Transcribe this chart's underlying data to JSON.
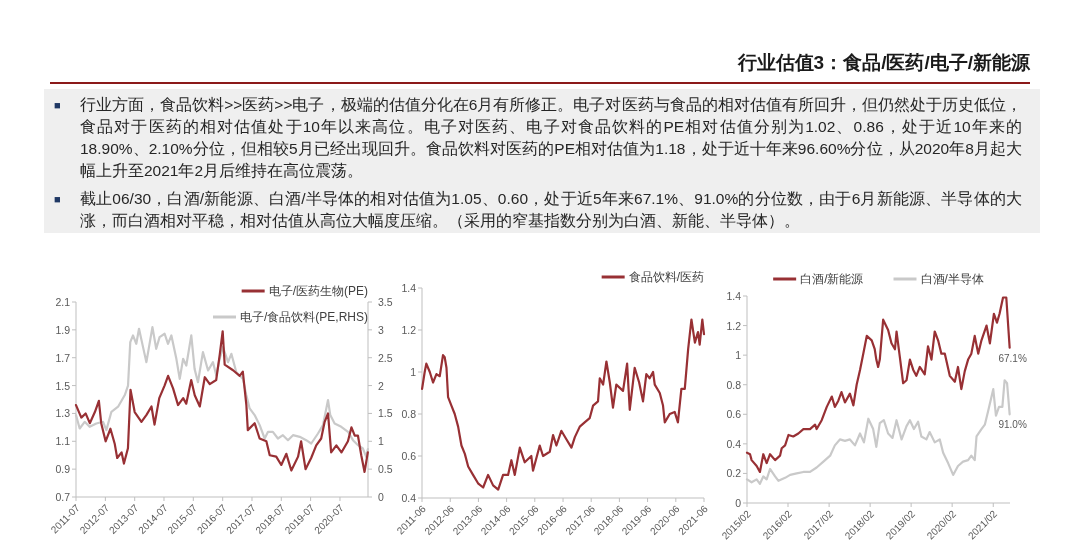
{
  "chart_data": [
    {
      "type": "other",
      "title": "行业估值3：食品/医药/电子/新能源",
      "annotations": [
        "■行业方面，食品饮料>>医药>>电子，极端的估值分化在6月有所修正。电子对医药与食品的相对估值有所回升，但仍然处于历史低位，食品对于医药的相对估值处于10年以来高位。电子对医药、电子对食品饮料的PE相对估值分别为1.02、0.86，处于近10年来的18.90%、2.10%分位，但相较5月已经出现回升。食品饮料对医药的PE相对估值为1.18，处于近十年来96.60%分位，从2020年8月起大幅上升至2021年2月后维持在高位震荡。",
        "■截止06/30，白酒/新能源、白酒/半导体的相对估值为1.05、0.60，处于近5年来67.1%、91.0%的分位数，由于6月新能源、半导体的大涨，而白酒相对平稳，相对估值从高位大幅度压缩。（采用的窄基指数分别为白酒、新能、半导体）。"
      ]
    },
    {
      "type": "line",
      "legend": "top right",
      "xlim": [
        "2011-07",
        "2021-06-15"
      ],
      "xticks": [
        "2011-07",
        "2012-07",
        "2013-07",
        "2014-07",
        "2015-07",
        "2016-07",
        "2017-07",
        "2018-07",
        "2019-07",
        "2020-07"
      ],
      "ylim": [
        0.7,
        2.1
      ],
      "yticks": [
        0.7,
        0.9,
        1.1,
        1.3,
        1.5,
        1.7,
        1.9,
        2.1
      ],
      "y2lim": [
        0,
        3.5
      ],
      "y2ticks": [
        0,
        0.5,
        1,
        1.5,
        2,
        2.5,
        3,
        3.5
      ],
      "series": [
        {
          "name": "电子/医药生物(PE)",
          "color": "#983034",
          "x": [
            "2011-07-01",
            "2011-09-05",
            "2011-10-29",
            "2011-12-20",
            "2012-02-21",
            "2012-04-11",
            "2012-05-10",
            "2012-07-04",
            "2012-09-02",
            "2012-10-26",
            "2012-11-25",
            "2013-01-19",
            "2013-02-17",
            "2013-04-08",
            "2013-05-10",
            "2013-07-01",
            "2013-09-23",
            "2013-11-25",
            "2014-01-26",
            "2014-03-05",
            "2014-05-03",
            "2014-07-08",
            "2014-08-21",
            "2014-10-22",
            "2014-12-23",
            "2015-02-25",
            "2015-04-04",
            "2015-06-05",
            "2015-07-19",
            "2015-09-20",
            "2015-11-21",
            "2016-01-22",
            "2016-04-11",
            "2016-05-25",
            "2016-07-01",
            "2016-07-26",
            "2016-11-07",
            "2017-01-29",
            "2017-03-09",
            "2017-04-22",
            "2017-05-10",
            "2017-08-03",
            "2017-10-04",
            "2017-12-27",
            "2018-02-07",
            "2018-04-29",
            "2018-07-01",
            "2018-09-02",
            "2018-11-03",
            "2019-01-26",
            "2019-03-05",
            "2019-04-29",
            "2019-07-08",
            "2019-09-09",
            "2019-11-10",
            "2019-12-23",
            "2020-02-03",
            "2020-03-13",
            "2020-05-17",
            "2020-07-19",
            "2020-10-08",
            "2020-11-21",
            "2021-01-01",
            "2021-02-10",
            "2021-03-23",
            "2021-05-03",
            "2021-06-13"
          ],
          "values": [
            1.36,
            1.27,
            1.3,
            1.23,
            1.31,
            1.39,
            1.23,
            1.1,
            1.19,
            1.08,
            0.98,
            1.02,
            0.94,
            1.05,
            1.47,
            1.31,
            1.24,
            1.29,
            1.35,
            1.22,
            1.41,
            1.5,
            1.57,
            1.48,
            1.36,
            1.41,
            1.37,
            1.54,
            1.43,
            1.35,
            1.56,
            1.51,
            1.54,
            1.72,
            1.89,
            1.65,
            1.61,
            1.57,
            1.6,
            1.36,
            1.18,
            1.23,
            1.12,
            1.1,
            1.0,
            0.99,
            0.93,
            1.01,
            0.89,
            0.99,
            1.1,
            0.9,
            0.98,
            1.07,
            1.12,
            1.24,
            1.3,
            1.02,
            1.07,
            1.02,
            1.1,
            1.2,
            1.14,
            1.14,
            1.0,
            0.88,
            1.02
          ]
        },
        {
          "name": "电子/食品饮料(PE,RHS)",
          "color": "#c9c9c9",
          "axis": "y2",
          "x": [
            "2011-07-01",
            "2011-08-16",
            "2011-10-17",
            "2011-12-18",
            "2012-03-10",
            "2012-06-02",
            "2012-07-13",
            "2012-09-14",
            "2012-12-06",
            "2013-02-28",
            "2013-04-09",
            "2013-05-07",
            "2013-06-10",
            "2013-07-21",
            "2013-08-24",
            "2013-10-13",
            "2013-11-24",
            "2014-02-07",
            "2014-03-26",
            "2014-05-07",
            "2014-07-09",
            "2014-08-20",
            "2014-10-01",
            "2014-12-02",
            "2015-01-13",
            "2015-02-24",
            "2015-04-05",
            "2015-06-06",
            "2015-07-17",
            "2015-08-28",
            "2015-10-29",
            "2016-01-01",
            "2016-03-02",
            "2016-04-13",
            "2016-05-24",
            "2016-07-05",
            "2016-09-06",
            "2016-10-17",
            "2016-12-18",
            "2017-03-10",
            "2017-04-21",
            "2017-06-02",
            "2017-08-03",
            "2017-10-05",
            "2017-12-06",
            "2018-01-17",
            "2018-03-18",
            "2018-05-20",
            "2018-07-21",
            "2018-09-22",
            "2018-11-24",
            "2019-02-16",
            "2019-05-07",
            "2019-07-09",
            "2019-10-01",
            "2019-12-02",
            "2020-02-03",
            "2020-03-02",
            "2020-04-25",
            "2020-07-17",
            "2020-10-09",
            "2020-12-10",
            "2021-02-11",
            "2021-04-13",
            "2021-05-24",
            "2021-06-14"
          ],
          "values": [
            1.47,
            1.23,
            1.35,
            1.26,
            1.32,
            1.35,
            1.2,
            1.53,
            1.62,
            1.83,
            2.0,
            2.78,
            2.9,
            2.75,
            3.02,
            2.69,
            2.42,
            3.05,
            2.66,
            2.87,
            2.93,
            2.75,
            2.9,
            2.48,
            2.12,
            2.48,
            2.36,
            2.9,
            2.3,
            2.06,
            2.6,
            2.27,
            2.42,
            2.18,
            2.48,
            2.69,
            2.42,
            2.57,
            2.24,
            2.12,
            1.83,
            1.59,
            1.47,
            1.29,
            1.05,
            1.17,
            1.17,
            1.05,
            1.11,
            1.02,
            1.11,
            1.08,
            1.02,
            0.96,
            1.14,
            1.29,
            1.74,
            1.47,
            1.32,
            1.26,
            1.17,
            1.02,
            0.93,
            0.87,
            0.72,
            0.86
          ]
        }
      ]
    },
    {
      "type": "line",
      "legend": "top right",
      "xlim": [
        "2011-06",
        "2021-06"
      ],
      "xticks": [
        "2011-06",
        "2012-06",
        "2013-06",
        "2014-06",
        "2015-06",
        "2016-06",
        "2017-06",
        "2018-06",
        "2019-06",
        "2020-06",
        "2021-06"
      ],
      "ylim": [
        0.4,
        1.4
      ],
      "yticks": [
        0.4,
        0.6,
        0.8,
        1,
        1.2,
        1.4
      ],
      "series": [
        {
          "name": "食品饮料/医药",
          "color": "#983034",
          "x": [
            "2011-06-02",
            "2011-07-06",
            "2011-07-27",
            "2011-09-10",
            "2011-10-22",
            "2011-12-05",
            "2012-01-17",
            "2012-02-28",
            "2012-03-21",
            "2012-04-13",
            "2012-05-04",
            "2012-06-16",
            "2012-07-29",
            "2012-09-11",
            "2012-10-24",
            "2012-12-07",
            "2013-01-19",
            "2013-03-23",
            "2013-05-27",
            "2013-08-01",
            "2013-10-04",
            "2013-12-08",
            "2014-02-12",
            "2014-04-16",
            "2014-06-20",
            "2014-08-02",
            "2014-09-15",
            "2014-11-19",
            "2015-01-22",
            "2015-04-17",
            "2015-05-09",
            "2015-08-04",
            "2015-09-16",
            "2015-12-12",
            "2016-01-24",
            "2016-03-07",
            "2016-05-10",
            "2016-07-14",
            "2016-09-18",
            "2016-11-01",
            "2017-01-04",
            "2017-03-08",
            "2017-05-12",
            "2017-06-25",
            "2017-08-28",
            "2017-09-20",
            "2017-11-02",
            "2017-12-15",
            "2018-01-28",
            "2018-03-10",
            "2018-04-22",
            "2018-07-18",
            "2018-09-09",
            "2018-10-13",
            "2018-12-16",
            "2019-02-12",
            "2019-04-03",
            "2019-05-16",
            "2019-06-28",
            "2019-08-11",
            "2019-09-02",
            "2019-11-06",
            "2019-12-18",
            "2020-01-10",
            "2020-03-14",
            "2020-05-17",
            "2020-06-28",
            "2020-08-12",
            "2020-09-25",
            "2020-11-08",
            "2020-12-20",
            "2021-02-03",
            "2021-03-15",
            "2021-04-06",
            "2021-05-10",
            "2021-06-01"
          ],
          "values": [
            0.92,
            1.0,
            1.04,
            1.0,
            0.95,
            0.99,
            0.98,
            1.08,
            1.07,
            1.02,
            0.88,
            0.84,
            0.8,
            0.74,
            0.65,
            0.61,
            0.55,
            0.51,
            0.47,
            0.45,
            0.51,
            0.46,
            0.44,
            0.51,
            0.51,
            0.58,
            0.51,
            0.64,
            0.57,
            0.6,
            0.53,
            0.65,
            0.6,
            0.62,
            0.7,
            0.65,
            0.72,
            0.68,
            0.64,
            0.69,
            0.74,
            0.76,
            0.78,
            0.84,
            0.86,
            0.97,
            0.94,
            1.05,
            0.95,
            0.83,
            0.94,
            0.91,
            1.04,
            0.82,
            1.02,
            0.95,
            0.86,
            0.99,
            0.97,
            1.0,
            0.94,
            0.9,
            0.84,
            0.76,
            0.8,
            0.81,
            0.76,
            0.92,
            0.92,
            1.11,
            1.25,
            1.14,
            1.19,
            1.13,
            1.25,
            1.18
          ]
        }
      ]
    },
    {
      "type": "line",
      "legend": "top",
      "xlim": [
        "2015-02",
        "2021-06-30"
      ],
      "xticks": [
        {
          "value": "2015-02",
          "label": "2015/02"
        },
        {
          "value": "2016-02",
          "label": "2016/02"
        },
        {
          "value": "2017-02",
          "label": "2017/02"
        },
        {
          "value": "2018-02",
          "label": "2018/02"
        },
        {
          "value": "2019-02",
          "label": "2019/02"
        },
        {
          "value": "2020-02",
          "label": "2020/02"
        },
        {
          "value": "2021-02",
          "label": "2021/02"
        }
      ],
      "ylim": [
        0,
        1.4
      ],
      "yticks": [
        0,
        0.2,
        0.4,
        0.6,
        0.8,
        1,
        1.2,
        1.4
      ],
      "annotations": [
        {
          "text": "67.1%",
          "x": "2021-06-27",
          "y": 1.05
        },
        {
          "text": "91.0%",
          "x": "2021-06-27",
          "y": 0.6
        }
      ],
      "series": [
        {
          "name": "白酒/新能源",
          "color": "#983034",
          "x": [
            "2015-02-01",
            "2015-02-28",
            "2015-03-14",
            "2015-04-28",
            "2015-05-27",
            "2015-06-26",
            "2015-07-26",
            "2015-08-25",
            "2015-10-09",
            "2015-11-22",
            "2015-12-07",
            "2016-01-06",
            "2016-02-05",
            "2016-03-19",
            "2016-05-03",
            "2016-06-17",
            "2016-08-15",
            "2016-09-29",
            "2016-10-13",
            "2016-11-27",
            "2017-01-11",
            "2017-02-25",
            "2017-03-24",
            "2017-04-23",
            "2017-05-22",
            "2017-06-22",
            "2017-08-05",
            "2017-09-05",
            "2017-10-04",
            "2017-11-03",
            "2017-12-02",
            "2018-01-02",
            "2018-02-15",
            "2018-03-14",
            "2018-03-28",
            "2018-04-13",
            "2018-04-28",
            "2018-05-28",
            "2018-07-11",
            "2018-08-10",
            "2018-09-10",
            "2018-09-24",
            "2018-10-23",
            "2018-11-22",
            "2018-12-22",
            "2019-01-21",
            "2019-02-20",
            "2019-03-19",
            "2019-04-19",
            "2019-06-02",
            "2019-07-01",
            "2019-08-01",
            "2019-08-30",
            "2019-09-29",
            "2019-10-28",
            "2019-11-28",
            "2020-01-11",
            "2020-02-25",
            "2020-03-24",
            "2020-04-23",
            "2020-05-23",
            "2020-06-22",
            "2020-07-21",
            "2020-08-20",
            "2020-09-20",
            "2020-10-19",
            "2020-12-03",
            "2021-01-02",
            "2021-02-07",
            "2021-03-06",
            "2021-03-29",
            "2021-04-29",
            "2021-05-28",
            "2021-06-27"
          ],
          "values": [
            0.34,
            0.33,
            0.29,
            0.25,
            0.21,
            0.33,
            0.27,
            0.33,
            0.29,
            0.32,
            0.37,
            0.39,
            0.46,
            0.45,
            0.47,
            0.5,
            0.5,
            0.53,
            0.5,
            0.56,
            0.65,
            0.72,
            0.65,
            0.69,
            0.75,
            0.68,
            0.74,
            0.66,
            0.8,
            0.9,
            1.01,
            1.13,
            1.1,
            1.04,
            0.97,
            0.92,
            0.97,
            1.24,
            1.17,
            1.08,
            1.04,
            1.16,
            0.99,
            0.81,
            0.83,
            0.97,
            0.9,
            0.86,
            0.92,
            0.87,
            1.06,
            0.97,
            1.16,
            1.1,
            1.01,
            1.01,
            0.86,
            0.82,
            0.92,
            0.77,
            0.89,
            0.97,
            1.01,
            1.13,
            1.01,
            1.1,
            1.2,
            1.08,
            1.28,
            1.22,
            1.28,
            1.39,
            1.39,
            1.05
          ]
        },
        {
          "name": "白酒/半导体",
          "color": "#c9c9c9",
          "x": [
            "2015-02-01",
            "2015-03-14",
            "2015-04-28",
            "2015-05-27",
            "2015-06-26",
            "2015-07-26",
            "2015-08-25",
            "2015-10-09",
            "2015-11-08",
            "2016-01-06",
            "2016-02-20",
            "2016-04-18",
            "2016-06-17",
            "2016-08-15",
            "2016-10-13",
            "2016-12-12",
            "2017-02-10",
            "2017-03-24",
            "2017-05-08",
            "2017-06-22",
            "2017-08-05",
            "2017-09-19",
            "2017-11-03",
            "2017-12-08",
            "2018-01-16",
            "2018-02-28",
            "2018-03-28",
            "2018-04-28",
            "2018-06-03",
            "2018-07-11",
            "2018-08-19",
            "2018-09-24",
            "2018-11-08",
            "2018-12-22",
            "2019-01-21",
            "2019-02-26",
            "2019-04-04",
            "2019-05-03",
            "2019-06-17",
            "2019-07-16",
            "2019-08-30",
            "2019-10-14",
            "2019-11-13",
            "2019-12-27",
            "2020-02-10",
            "2020-03-24",
            "2020-05-08",
            "2020-06-22",
            "2020-07-21",
            "2020-08-20",
            "2020-09-05",
            "2020-10-19",
            "2020-11-18",
            "2020-12-17",
            "2021-02-01",
            "2021-02-25",
            "2021-03-24",
            "2021-04-23",
            "2021-05-13",
            "2021-06-04",
            "2021-06-27"
          ],
          "values": [
            0.16,
            0.14,
            0.16,
            0.13,
            0.18,
            0.16,
            0.23,
            0.18,
            0.15,
            0.17,
            0.19,
            0.2,
            0.21,
            0.21,
            0.24,
            0.28,
            0.32,
            0.39,
            0.43,
            0.42,
            0.43,
            0.39,
            0.47,
            0.41,
            0.57,
            0.5,
            0.38,
            0.54,
            0.56,
            0.47,
            0.44,
            0.56,
            0.43,
            0.52,
            0.56,
            0.5,
            0.55,
            0.45,
            0.43,
            0.48,
            0.41,
            0.43,
            0.34,
            0.27,
            0.19,
            0.25,
            0.28,
            0.29,
            0.32,
            0.29,
            0.45,
            0.5,
            0.53,
            0.62,
            0.77,
            0.59,
            0.65,
            0.65,
            0.83,
            0.81,
            0.6
          ]
        }
      ]
    }
  ]
}
